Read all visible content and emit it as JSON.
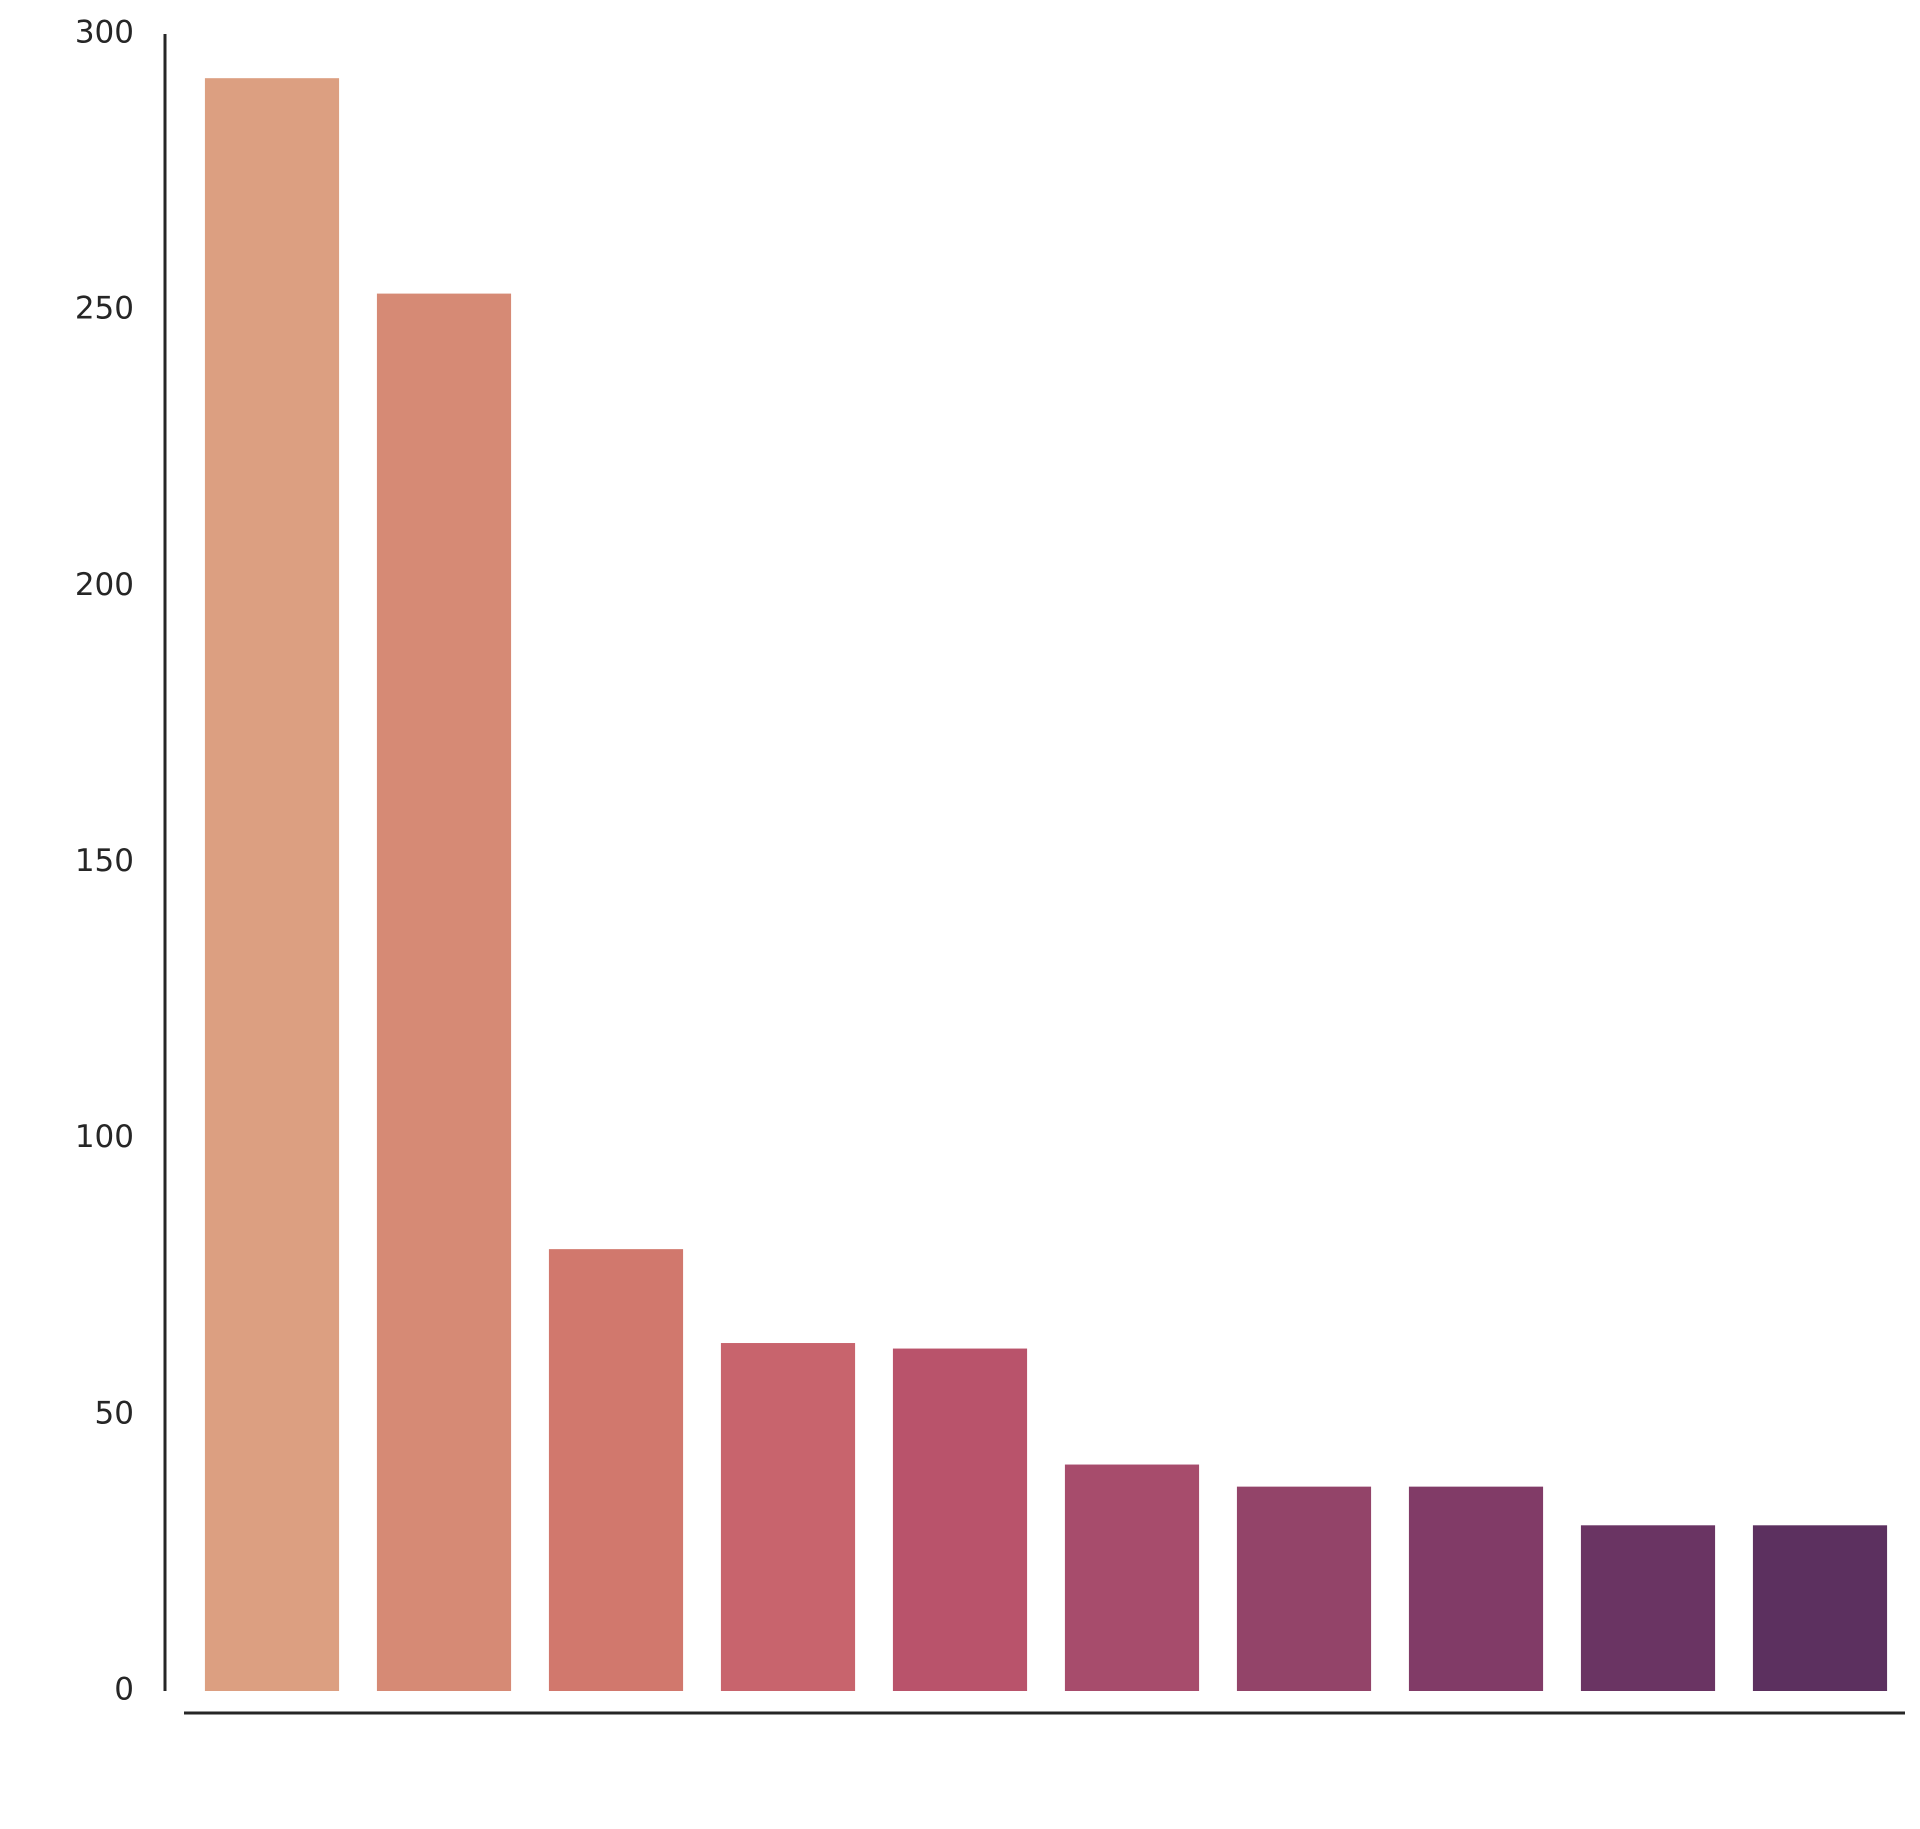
{
  "chart_data": {
    "type": "bar",
    "categories": [
      null,
      null,
      null,
      null,
      null,
      null,
      null,
      null,
      null,
      null
    ],
    "values": [
      292,
      253,
      80,
      63,
      62,
      41,
      37,
      37,
      30,
      30
    ],
    "colors": [
      "#dc9f81",
      "#d68a75",
      "#d1786d",
      "#c8646d",
      "#b9536b",
      "#a74c6c",
      "#934469",
      "#813b67",
      "#6a3463",
      "#5c305f"
    ],
    "ylim": [
      0,
      300
    ],
    "yticks": [
      0,
      50,
      100,
      150,
      200,
      250,
      300
    ],
    "grid": false
  }
}
